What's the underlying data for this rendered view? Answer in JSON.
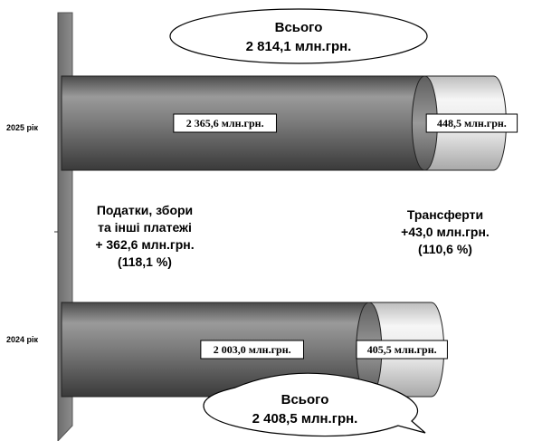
{
  "chart_data": {
    "type": "bar",
    "orientation": "horizontal",
    "stacked": true,
    "categories": [
      "2025 рік",
      "2024 рік"
    ],
    "series": [
      {
        "values": [
          2365.6,
          2003.0
        ],
        "labels": [
          "2 365,6 млн.грн.",
          "2 003,0 млн.грн."
        ]
      },
      {
        "values": [
          448.5,
          405.5
        ],
        "labels": [
          "448,5 млн.грн.",
          "405,5 млн.грн."
        ]
      }
    ],
    "totals": [
      {
        "line1": "Всього",
        "line2": "2 814,1 млн.грн."
      },
      {
        "line1": "Всього",
        "line2": "2 408,5 млн.грн."
      }
    ],
    "annotations": {
      "taxes": [
        "Податки, збори",
        "та інші платежі",
        "+ 362,6 млн.грн.",
        "(118,1 %)"
      ],
      "transfers": [
        "Трансферти",
        "+43,0 млн.грн.",
        "(110,6 %)"
      ]
    },
    "xlim": [
      0,
      2900
    ],
    "colors": {
      "primary": "#7a7a7a",
      "secondary": "#e6e6e6"
    }
  }
}
